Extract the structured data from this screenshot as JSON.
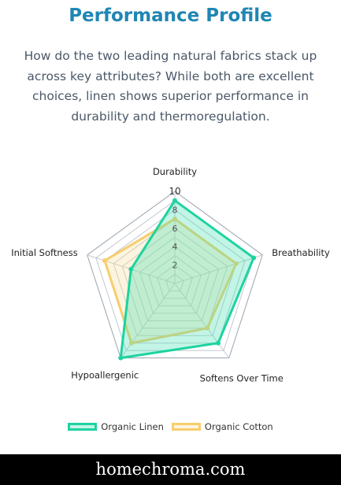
{
  "header": {
    "title": "Performance Profile",
    "subtitle": "How do the two leading natural fabrics stack up across key attributes? While both are excellent choices, linen shows superior performance in durability and thermoregulation."
  },
  "chart_data": {
    "type": "radar",
    "categories": [
      "Durability",
      "Breathability",
      "Softens Over Time",
      "Hypoallergenic",
      "Initial Softness"
    ],
    "scale": {
      "min": 0,
      "max": 10,
      "ticks": [
        2,
        4,
        6,
        8,
        10
      ]
    },
    "series": [
      {
        "name": "Organic Linen",
        "values": [
          9,
          9,
          8,
          10,
          5
        ],
        "color": "#1dd3a0",
        "fill": "rgba(64,224,176,0.32)"
      },
      {
        "name": "Organic Cotton",
        "values": [
          7,
          7,
          6,
          8,
          8
        ],
        "color": "#f7cd6e",
        "fill": "rgba(250,220,150,0.30)"
      }
    ],
    "grid": true,
    "legend": "bottom"
  },
  "footer": {
    "brand": "homechroma.com"
  }
}
